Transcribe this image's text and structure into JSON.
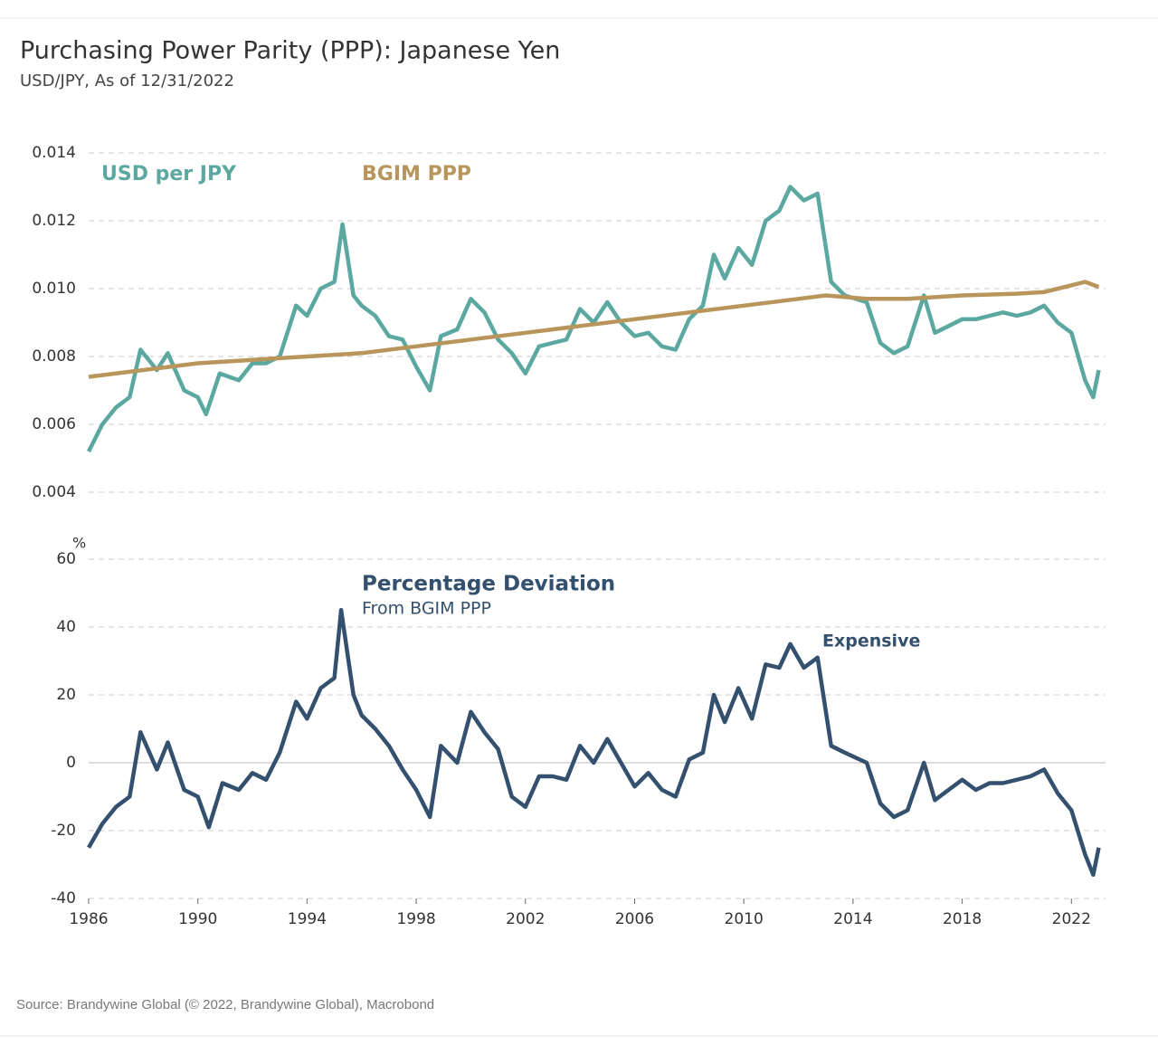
{
  "title": "Purchasing Power Parity (PPP): Japanese Yen",
  "subtitle": "USD/JPY, As of 12/31/2022",
  "source": "Source: Brandywine Global (© 2022, Brandywine Global), Macrobond",
  "chart_data": [
    {
      "type": "line",
      "xlim": [
        1986,
        2023.25
      ],
      "ylim": [
        0.004,
        0.014
      ],
      "yticks": [
        0.004,
        0.006,
        0.008,
        {
          "value": 0.01,
          "label": "0.010"
        },
        0.012,
        0.014
      ],
      "grid": true,
      "series": [
        {
          "name": "USD per JPY",
          "color": "#5ba8a0",
          "x": [
            1986.0,
            1986.5,
            1987.0,
            1987.5,
            1987.9,
            1988.5,
            1988.9,
            1989.5,
            1990.0,
            1990.3,
            1990.8,
            1991.5,
            1992.0,
            1992.5,
            1993.0,
            1993.6,
            1994.0,
            1994.5,
            1995.0,
            1995.3,
            1995.7,
            1996.0,
            1996.5,
            1997.0,
            1997.5,
            1998.0,
            1998.5,
            1998.9,
            1999.5,
            2000.0,
            2000.5,
            2001.0,
            2001.5,
            2002.0,
            2002.5,
            2003.0,
            2003.5,
            2004.0,
            2004.5,
            2005.0,
            2005.5,
            2006.0,
            2006.5,
            2007.0,
            2007.5,
            2008.0,
            2008.5,
            2008.9,
            2009.3,
            2009.8,
            2010.3,
            2010.8,
            2011.3,
            2011.7,
            2012.2,
            2012.7,
            2013.2,
            2013.7,
            2014.5,
            2015.0,
            2015.5,
            2016.0,
            2016.6,
            2017.0,
            2017.5,
            2018.0,
            2018.5,
            2019.0,
            2019.5,
            2020.0,
            2020.5,
            2021.0,
            2021.5,
            2022.0,
            2022.5,
            2022.8,
            2023.0
          ],
          "values": [
            0.0052,
            0.006,
            0.0065,
            0.0068,
            0.0082,
            0.0076,
            0.0081,
            0.007,
            0.0068,
            0.0063,
            0.0075,
            0.0073,
            0.0078,
            0.0078,
            0.008,
            0.0095,
            0.0092,
            0.01,
            0.0102,
            0.0119,
            0.0098,
            0.0095,
            0.0092,
            0.0086,
            0.0085,
            0.0077,
            0.007,
            0.0086,
            0.0088,
            0.0097,
            0.0093,
            0.0085,
            0.0081,
            0.0075,
            0.0083,
            0.0084,
            0.0085,
            0.0094,
            0.009,
            0.0096,
            0.009,
            0.0086,
            0.0087,
            0.0083,
            0.0082,
            0.0091,
            0.0095,
            0.011,
            0.0103,
            0.0112,
            0.0107,
            0.012,
            0.0123,
            0.013,
            0.0126,
            0.0128,
            0.0102,
            0.0098,
            0.0096,
            0.0084,
            0.0081,
            0.0083,
            0.0098,
            0.0087,
            0.0089,
            0.0091,
            0.0091,
            0.0092,
            0.0093,
            0.0092,
            0.0093,
            0.0095,
            0.009,
            0.0087,
            0.0073,
            0.0068,
            0.0076
          ]
        },
        {
          "name": "BGIM PPP",
          "color": "#b8955a",
          "x": [
            1986.0,
            1988.0,
            1990.0,
            1992.0,
            1994.0,
            1996.0,
            1998.0,
            2000.0,
            2002.0,
            2004.0,
            2006.0,
            2008.0,
            2010.0,
            2012.0,
            2013.0,
            2014.5,
            2016.0,
            2018.0,
            2020.0,
            2021.0,
            2022.0,
            2022.5,
            2023.0
          ],
          "values": [
            0.0074,
            0.0076,
            0.0078,
            0.0079,
            0.008,
            0.0081,
            0.0083,
            0.0085,
            0.0087,
            0.0089,
            0.0091,
            0.0093,
            0.0095,
            0.0097,
            0.0098,
            0.0097,
            0.0097,
            0.0098,
            0.00985,
            0.0099,
            0.0101,
            0.0102,
            0.01005
          ]
        }
      ]
    },
    {
      "type": "line",
      "y_unit": "%",
      "annotations": [
        "Percentage Deviation",
        "From BGIM PPP",
        "Expensive"
      ],
      "xlim": [
        1986,
        2023.25
      ],
      "xticks": [
        1986,
        1990,
        1994,
        1998,
        2002,
        2006,
        2010,
        2014,
        2018,
        2022
      ],
      "ylim": [
        -40,
        60
      ],
      "yticks": [
        -40,
        -20,
        0,
        20,
        40,
        60
      ],
      "grid": true,
      "baseline": 0,
      "series": [
        {
          "name": "Percentage Deviation",
          "color": "#34506f",
          "x": [
            1986.0,
            1986.5,
            1987.0,
            1987.5,
            1987.9,
            1988.5,
            1988.9,
            1989.5,
            1990.0,
            1990.4,
            1990.9,
            1991.5,
            1992.0,
            1992.5,
            1993.0,
            1993.6,
            1994.0,
            1994.5,
            1995.0,
            1995.25,
            1995.7,
            1996.0,
            1996.5,
            1997.0,
            1997.5,
            1998.0,
            1998.5,
            1998.9,
            1999.5,
            2000.0,
            2000.5,
            2001.0,
            2001.5,
            2002.0,
            2002.5,
            2003.0,
            2003.5,
            2004.0,
            2004.5,
            2005.0,
            2005.5,
            2006.0,
            2006.5,
            2007.0,
            2007.5,
            2008.0,
            2008.5,
            2008.9,
            2009.3,
            2009.8,
            2010.3,
            2010.8,
            2011.3,
            2011.7,
            2012.2,
            2012.7,
            2013.2,
            2013.7,
            2014.5,
            2015.0,
            2015.5,
            2016.0,
            2016.6,
            2017.0,
            2017.5,
            2018.0,
            2018.5,
            2019.0,
            2019.5,
            2020.0,
            2020.5,
            2021.0,
            2021.5,
            2022.0,
            2022.5,
            2022.8,
            2023.0
          ],
          "values": [
            -25,
            -18,
            -13,
            -10,
            9,
            -2,
            6,
            -8,
            -10,
            -19,
            -6,
            -8,
            -3,
            -5,
            3,
            18,
            13,
            22,
            25,
            45,
            20,
            14,
            10,
            5,
            -2,
            -8,
            -16,
            5,
            0,
            15,
            9,
            4,
            -10,
            -13,
            -4,
            -4,
            -5,
            5,
            0,
            7,
            0,
            -7,
            -3,
            -8,
            -10,
            1,
            3,
            20,
            12,
            22,
            13,
            29,
            28,
            35,
            28,
            31,
            5,
            3,
            0,
            -12,
            -16,
            -14,
            0,
            -11,
            -8,
            -5,
            -8,
            -6,
            -6,
            -5,
            -4,
            -2,
            -9,
            -14,
            -27,
            -33,
            -25
          ]
        }
      ]
    }
  ]
}
